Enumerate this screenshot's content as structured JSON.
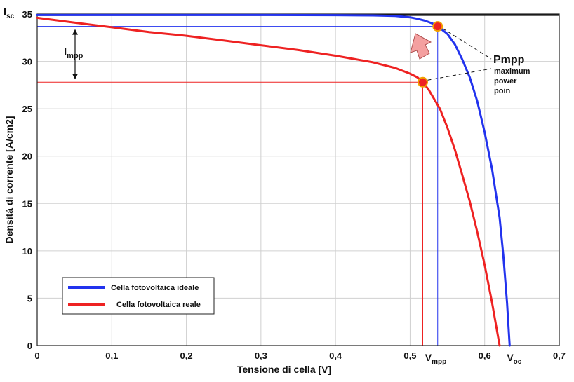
{
  "chart_data": {
    "type": "line",
    "title": "",
    "xlabel": "Tensione di cella [V]",
    "ylabel": "Densità di corrente [A/cm2]",
    "xlim": [
      0,
      0.7
    ],
    "ylim": [
      0,
      35
    ],
    "x_ticks": [
      "0",
      "0,1",
      "0,2",
      "0,3",
      "0,4",
      "0,5",
      "0,6",
      "0,7"
    ],
    "y_ticks": [
      "0",
      "5",
      "10",
      "15",
      "20",
      "25",
      "30",
      "35"
    ],
    "grid": true,
    "legend_position": "bottom-left",
    "series": [
      {
        "name": "Cella fotovoltaica ideale",
        "color": "#2233ee",
        "x": [
          0,
          0.1,
          0.2,
          0.3,
          0.4,
          0.45,
          0.48,
          0.5,
          0.51,
          0.52,
          0.53,
          0.537,
          0.55,
          0.56,
          0.57,
          0.58,
          0.59,
          0.6,
          0.61,
          0.62,
          0.625,
          0.63,
          0.6335
        ],
        "y": [
          34.9,
          34.9,
          34.9,
          34.9,
          34.88,
          34.85,
          34.8,
          34.65,
          34.5,
          34.3,
          34.0,
          33.7,
          32.9,
          31.8,
          30.2,
          28.3,
          25.8,
          22.5,
          18.6,
          13.5,
          9.5,
          4.5,
          0
        ]
      },
      {
        "name": "Cella fotovoltaica reale",
        "color": "#ee2222",
        "x": [
          0,
          0.05,
          0.1,
          0.15,
          0.2,
          0.25,
          0.3,
          0.35,
          0.4,
          0.45,
          0.48,
          0.5,
          0.51,
          0.517,
          0.525,
          0.54,
          0.55,
          0.56,
          0.57,
          0.58,
          0.59,
          0.6,
          0.61,
          0.62
        ],
        "y": [
          34.6,
          34.1,
          33.6,
          33.1,
          32.7,
          32.2,
          31.7,
          31.2,
          30.6,
          29.9,
          29.3,
          28.7,
          28.3,
          27.8,
          27.0,
          25.0,
          23.0,
          20.7,
          18.0,
          15.2,
          12.0,
          8.5,
          4.5,
          0
        ]
      }
    ],
    "reference_lines": {
      "isc": 34.9,
      "impp_ideal": 33.7,
      "impp_real": 27.8,
      "vmpp_ideal": 0.537,
      "vmpp_real": 0.517,
      "voc": 0.6335
    },
    "mpp_points": [
      {
        "x": 0.537,
        "y": 33.7
      },
      {
        "x": 0.517,
        "y": 27.8
      }
    ],
    "annotations": {
      "isc_main": "I",
      "isc_sub": "sc",
      "impp_main": "I",
      "impp_sub": "mpp",
      "vmpp_main": "V",
      "vmpp_sub": "mpp",
      "voc_main": "V",
      "voc_sub": "oc",
      "pmpp": "Pmpp",
      "pmpp_desc_1": "maximum",
      "pmpp_desc_2": "power",
      "pmpp_desc_3": "poin"
    },
    "colors": {
      "grid": "#d0d0d0",
      "mpp_marker": "#ee2222",
      "mpp_marker_edge": "#f0a000",
      "arrow_fill": "#f4a0a0"
    }
  }
}
